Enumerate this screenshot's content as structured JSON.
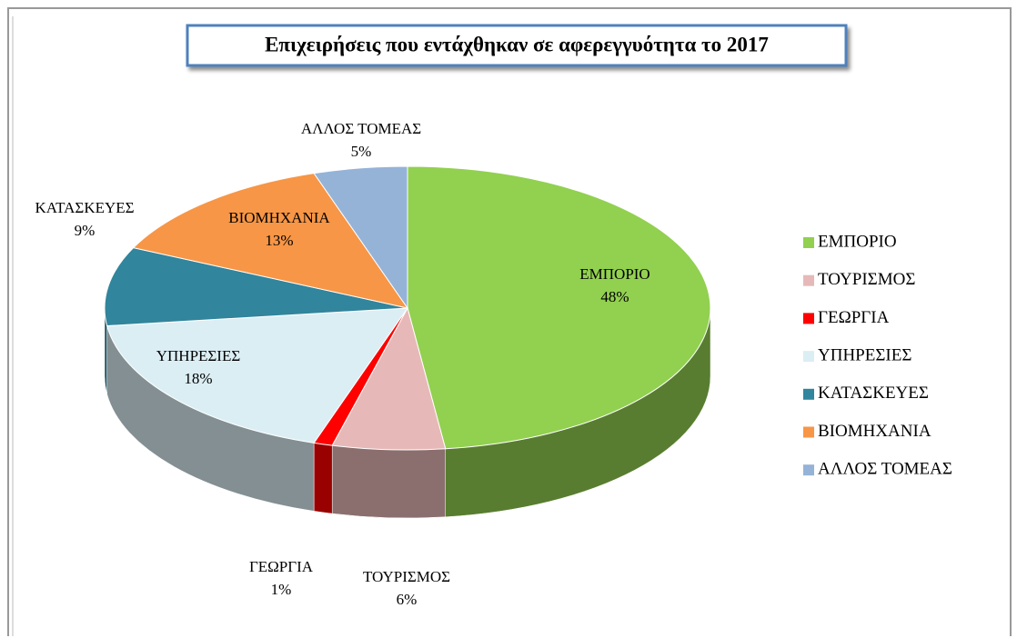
{
  "chart_data": {
    "type": "pie",
    "title": "Επιχειρήσεις που εντάχθηκαν σε αφερεγγυότητα το 2017",
    "categories": [
      "ΕΜΠΟΡΙΟ",
      "ΤΟΥΡΙΣΜΟΣ",
      "ΓΕΩΡΓΙΑ",
      "ΥΠΗΡΕΣΙΕΣ",
      "ΚΑΤΑΣΚΕΥΕΣ",
      "ΒΙΟΜΗΧΑΝΙΑ",
      "ΑΛΛΟΣ ΤΟΜΕΑΣ"
    ],
    "values": [
      48,
      6,
      1,
      18,
      9,
      13,
      5
    ],
    "value_labels": [
      "48%",
      "6%",
      "1%",
      "18%",
      "9%",
      "13%",
      "5%"
    ],
    "colors": [
      "#92d050",
      "#e6b9b8",
      "#ff0000",
      "#dbeef4",
      "#31859c",
      "#f79646",
      "#95b3d7"
    ],
    "legend": "right"
  }
}
